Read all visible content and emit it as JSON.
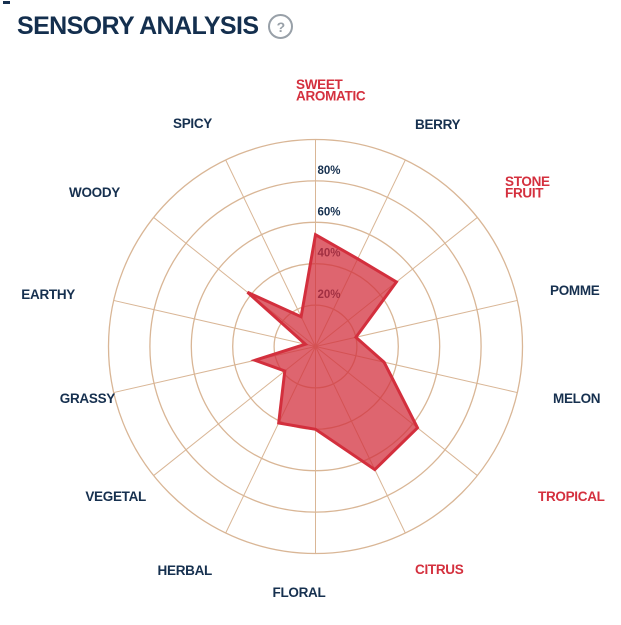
{
  "header": {
    "title": "SENSORY ANALYSIS",
    "help_icon": "?"
  },
  "colors": {
    "navy": "#16304f",
    "red": "#d32f3d",
    "red_label": "#d4303e",
    "grid": "#d9b696",
    "icon_gray": "#98a0a8",
    "fill_opacity": 0.74
  },
  "chart_data": {
    "type": "radar",
    "title": "SENSORY ANALYSIS",
    "max": 100,
    "rings_percent": [
      20,
      40,
      60,
      80,
      100
    ],
    "tick_labels": [
      "20%",
      "40%",
      "60%",
      "80%"
    ],
    "grid": true,
    "legend": false,
    "categories": [
      "SWEET\nAROMATIC",
      "BERRY",
      "STONE\nFRUIT",
      "POMME",
      "MELON",
      "TROPICAL",
      "CITRUS",
      "FLORAL",
      "HERBAL",
      "VEGETAL",
      "GRASSY",
      "EARTHY",
      "WOODY",
      "SPICY"
    ],
    "category_colors": [
      "red",
      "navy",
      "red",
      "navy",
      "navy",
      "red",
      "red",
      "navy",
      "navy",
      "navy",
      "navy",
      "navy",
      "navy",
      "navy"
    ],
    "series": [
      {
        "name": "sensory-profile",
        "values": [
          54,
          47,
          50,
          20,
          34,
          63,
          66,
          40,
          41,
          19,
          30,
          5,
          42,
          16
        ]
      }
    ]
  }
}
